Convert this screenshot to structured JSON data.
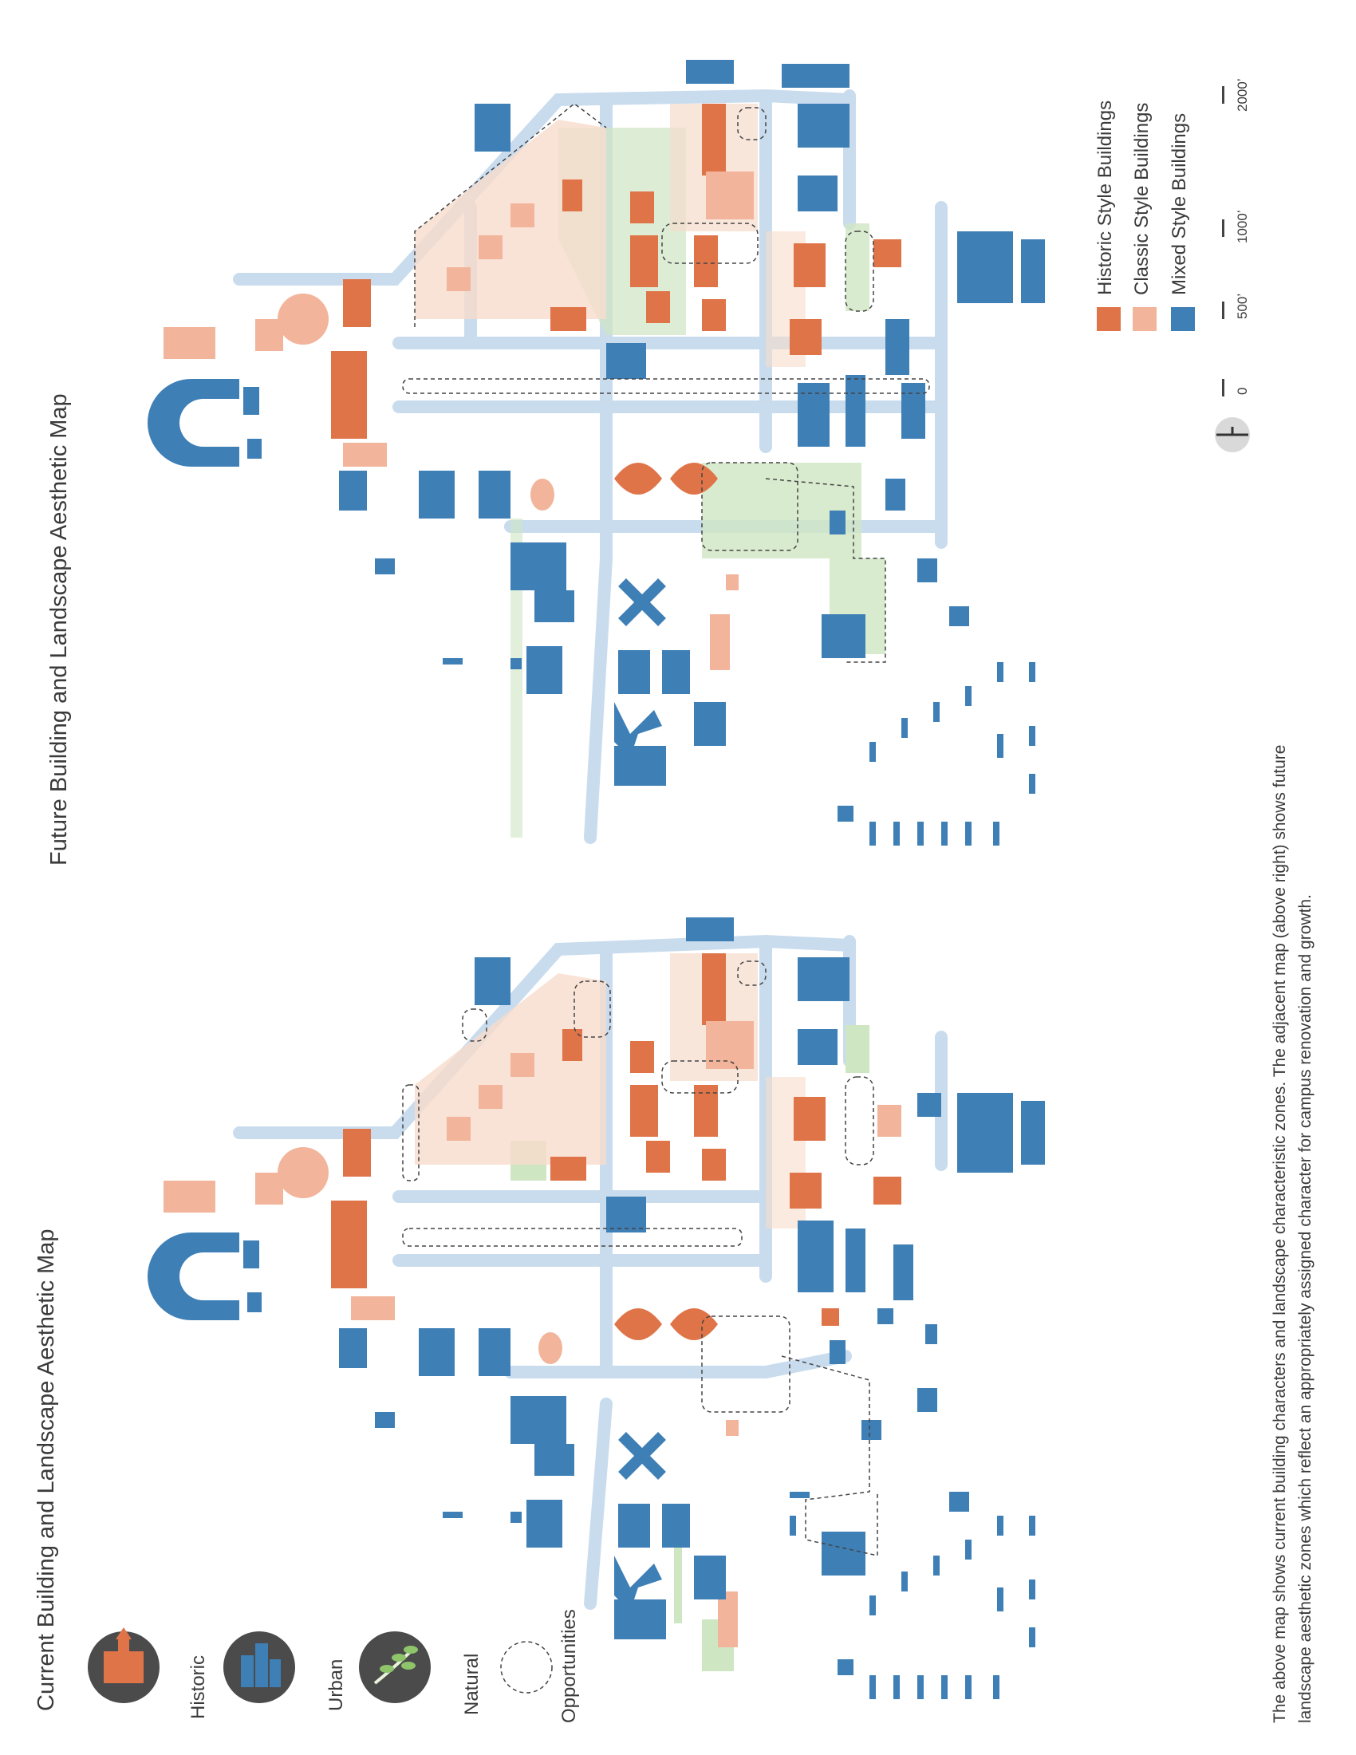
{
  "titles": {
    "current": "Current Building and Landscape Aesthetic Map",
    "future": "Future Building and Landscape Aesthetic Map"
  },
  "icon_legend": [
    {
      "label": "Historic",
      "icon": "historic-building-icon"
    },
    {
      "label": "Urban",
      "icon": "urban-buildings-icon"
    },
    {
      "label": "Natural",
      "icon": "tree-branch-icon"
    },
    {
      "label": "Opportunities",
      "icon": "dashed-circle-icon"
    }
  ],
  "building_legend": [
    {
      "label": "Historic Style Buildings",
      "color": "#e07449"
    },
    {
      "label": "Classic Style Buildings",
      "color": "#f2b49a"
    },
    {
      "label": "Mixed Style Buildings",
      "color": "#3e7fb6"
    }
  ],
  "scale_bar": {
    "labels": [
      "0",
      "500’",
      "1000’",
      "2000’"
    ]
  },
  "caption": {
    "line1": "The above map shows current building characters and landscape characteristic zones. The adjacent map (above right) shows future",
    "line2": "landscape aesthetic zones which reflect an appropriately assigned character for campus renovation and growth."
  },
  "colors": {
    "historic": "#e07449",
    "classic": "#f2b49a",
    "mixed": "#3e7fb6",
    "road": "#c9dcee",
    "natural": "#cfe6c3",
    "icon_bg": "#4b4b4b"
  }
}
